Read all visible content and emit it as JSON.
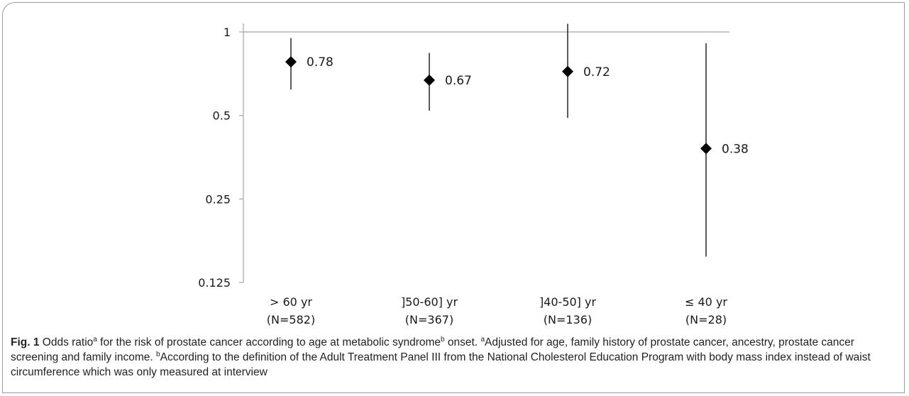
{
  "chart_data": {
    "type": "scatter",
    "y_scale": "log2",
    "ylim": [
      0.125,
      1.1
    ],
    "y_ticks": [
      1,
      0.5,
      0.25,
      0.125
    ],
    "y_tick_labels": [
      "1",
      "0.5",
      "0.25",
      "0.125"
    ],
    "reference_line": 1,
    "categories": [
      {
        "label": "> 60 yr",
        "n": "(N=582)"
      },
      {
        "label": "]50-60] yr",
        "n": "(N=367)"
      },
      {
        "label": "]40-50] yr",
        "n": "(N=136)"
      },
      {
        "label": "≤ 40 yr",
        "n": "(N=28)"
      }
    ],
    "points": [
      {
        "or": 0.78,
        "label": "0.78",
        "ci": [
          0.62,
          0.95
        ]
      },
      {
        "or": 0.67,
        "label": "0.67",
        "ci": [
          0.52,
          0.84
        ]
      },
      {
        "or": 0.72,
        "label": "0.72",
        "ci": [
          0.49,
          1.07
        ]
      },
      {
        "or": 0.38,
        "label": "0.38",
        "ci": [
          0.155,
          0.91
        ]
      }
    ],
    "colors": {
      "axis": "#a6a6a6",
      "marker": "#000000"
    }
  },
  "caption": {
    "fig": "Fig. 1",
    "t1": " Odds ratio",
    "s1": "a",
    "t2": " for the risk of prostate cancer according to age at metabolic syndrome",
    "s2": "b",
    "t3": " onset. ",
    "s3": "a",
    "t4": "Adjusted for age, family history of prostate cancer, ancestry, prostate cancer screening and family income. ",
    "s4": "b",
    "t5": "According to the definition of the Adult Treatment Panel III from the National Cholesterol Education Program with body mass index instead of waist circumference which was only measured at interview"
  }
}
